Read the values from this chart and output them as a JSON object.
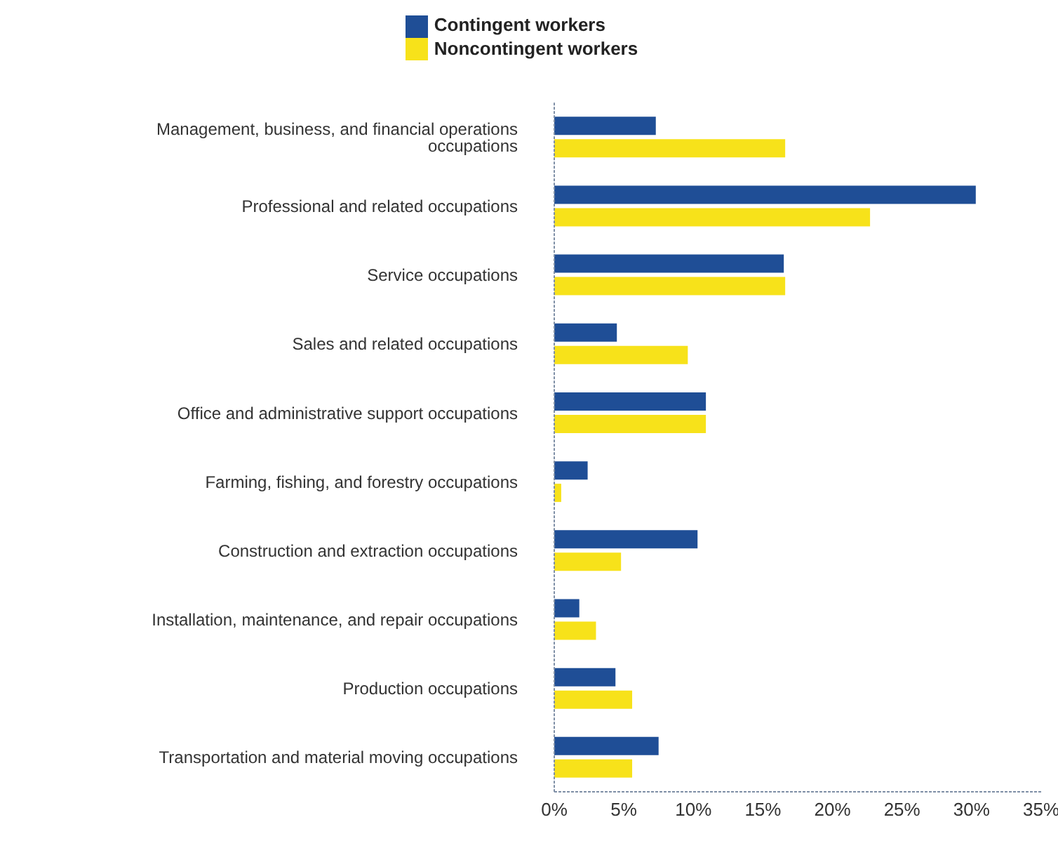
{
  "chart_data": {
    "type": "bar",
    "orientation": "horizontal",
    "categories": [
      "Management, business, and financial operations occupations",
      "Professional and related occupations",
      "Service occupations",
      "Sales and related occupations",
      "Office and administrative support occupations",
      "Farming, fishing, and forestry occupations",
      "Construction and extraction occupations",
      "Installation, maintenance, and repair occupations",
      "Production occupations",
      "Transportation and material moving occupations"
    ],
    "series": [
      {
        "name": "Contingent workers",
        "color": "#1f4e96",
        "values": [
          7.3,
          30.3,
          16.5,
          4.5,
          10.9,
          2.4,
          10.3,
          1.8,
          4.4,
          7.5
        ]
      },
      {
        "name": "Noncontingent workers",
        "color": "#f7e21a",
        "values": [
          16.6,
          22.7,
          16.6,
          9.6,
          10.9,
          0.5,
          4.8,
          3.0,
          5.6,
          5.6
        ]
      }
    ],
    "xlim": [
      0,
      35
    ],
    "xticks": [
      {
        "value": 0,
        "label": "0%"
      },
      {
        "value": 5,
        "label": "5%"
      },
      {
        "value": 10,
        "label": "10%"
      },
      {
        "value": 15,
        "label": "15%"
      },
      {
        "value": 20,
        "label": "20%"
      },
      {
        "value": 25,
        "label": "25%"
      },
      {
        "value": 30,
        "label": "30%"
      },
      {
        "value": 35,
        "label": "35%"
      }
    ],
    "grid": false,
    "legend": "top"
  }
}
